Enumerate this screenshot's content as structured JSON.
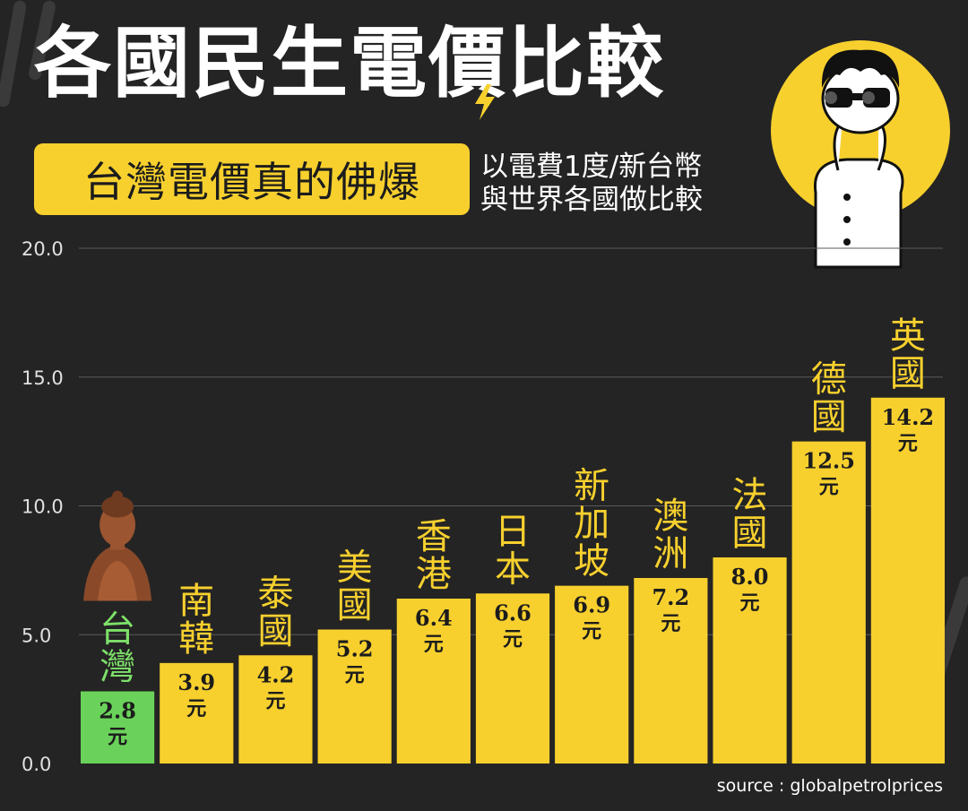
{
  "header": {
    "title": "各國民生電價比較",
    "subtitle": "台灣電價真的佛爆",
    "note_lines": [
      "以電費1度/新台幣",
      "與世界各國做比較"
    ]
  },
  "source": "source : globalpetrolprices",
  "colors": {
    "background": "#242424",
    "bar": "#f7d02e",
    "highlight_bar": "#6ad25a",
    "highlight_text": "#7ee06a",
    "label": "#f7d02e",
    "grid": "#5a5a5a",
    "axis_text": "#e0e0e0"
  },
  "icons": {
    "buddha": "buddha-statue-icon",
    "bolt": "lightning-bolt-icon",
    "person": "person-with-binoculars-illustration"
  },
  "chart_data": {
    "type": "bar",
    "categories": [
      "台灣",
      "南韓",
      "泰國",
      "美國",
      "香港",
      "日本",
      "新加坡",
      "澳洲",
      "法國",
      "德國",
      "英國"
    ],
    "values": [
      2.8,
      3.9,
      4.2,
      5.2,
      6.4,
      6.6,
      6.9,
      7.2,
      8.0,
      12.5,
      14.2
    ],
    "value_labels": [
      "2.8",
      "3.9",
      "4.2",
      "5.2",
      "6.4",
      "6.6",
      "6.9",
      "7.2",
      "8.0",
      "12.5",
      "14.2"
    ],
    "unit_label": "元",
    "highlight_index": 0,
    "yticks": [
      "0.0",
      "5.0",
      "10.0",
      "15.0",
      "20.0"
    ],
    "ylim": [
      0,
      20
    ],
    "grid": true,
    "legend": "none"
  }
}
